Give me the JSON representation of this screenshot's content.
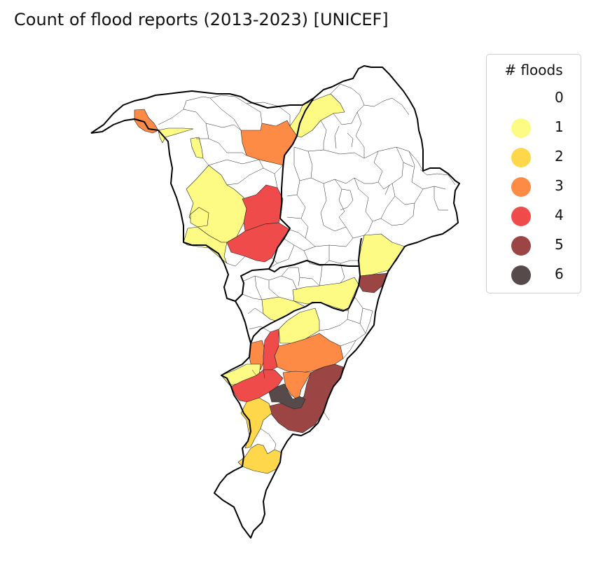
{
  "title": "Count of flood reports (2013-2023) [UNICEF]",
  "legend": {
    "title": "# floods",
    "items": [
      {
        "label": "0",
        "color": "#ffffff"
      },
      {
        "label": "1",
        "color": "#fdfb83"
      },
      {
        "label": "2",
        "color": "#fed84a"
      },
      {
        "label": "3",
        "color": "#fd8a45"
      },
      {
        "label": "4",
        "color": "#ef4b4b"
      },
      {
        "label": "5",
        "color": "#9c4545"
      },
      {
        "label": "6",
        "color": "#574a4a"
      }
    ]
  }
}
